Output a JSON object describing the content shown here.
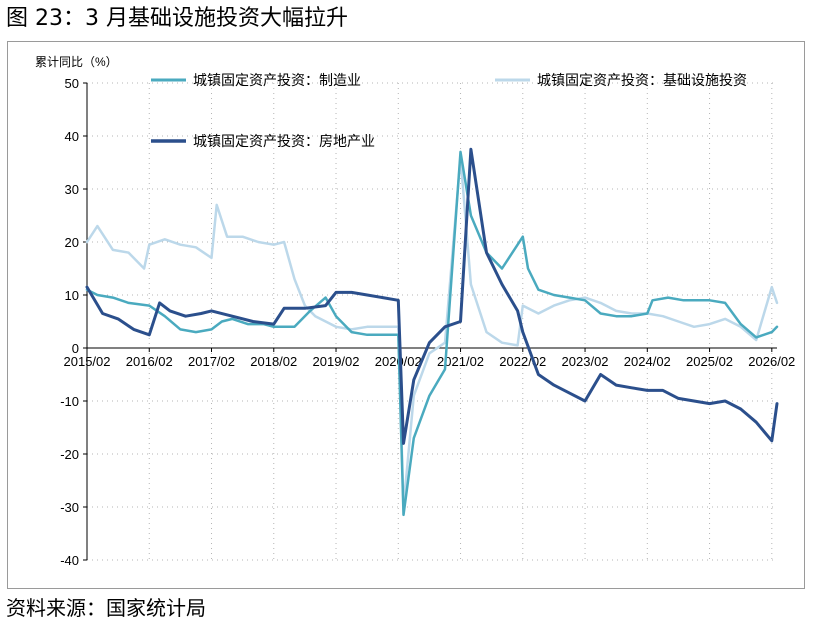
{
  "figure": {
    "title": "图 23：3 月基础设施投资大幅拉升",
    "source": "资料来源：国家统计局"
  },
  "chart_data": {
    "type": "line",
    "ylabel": "累计同比（%）",
    "ylim": [
      -40,
      50
    ],
    "yticks": [
      50,
      40,
      30,
      20,
      10,
      0,
      -10,
      -20,
      -30,
      -40
    ],
    "x_start": "2015/02",
    "x_end": "2026/03",
    "xticks": [
      "2015/02",
      "2016/02",
      "2017/02",
      "2018/02",
      "2019/02",
      "2020/02",
      "2021/02",
      "2022/02",
      "2023/02",
      "2024/02",
      "2025/02",
      "2026/02"
    ],
    "grid": "dotted",
    "colors": {
      "manufacturing": "#4aaabf",
      "infrastructure": "#bcd8ea",
      "real_estate": "#2b4f8c"
    },
    "series": [
      {
        "key": "manufacturing",
        "name": "城镇固定资产投资：制造业",
        "x": [
          "2015/02",
          "2015/04",
          "2015/07",
          "2015/10",
          "2016/02",
          "2016/05",
          "2016/08",
          "2016/11",
          "2017/02",
          "2017/04",
          "2017/06",
          "2017/09",
          "2017/12",
          "2018/02",
          "2018/06",
          "2018/09",
          "2018/12",
          "2019/02",
          "2019/05",
          "2019/08",
          "2019/11",
          "2020/02",
          "2020/03",
          "2020/05",
          "2020/08",
          "2020/11",
          "2021/02",
          "2021/04",
          "2021/07",
          "2021/10",
          "2022/02",
          "2022/03",
          "2022/05",
          "2022/08",
          "2022/11",
          "2023/02",
          "2023/05",
          "2023/08",
          "2023/11",
          "2024/02",
          "2024/03",
          "2024/06",
          "2024/09",
          "2024/12",
          "2025/02",
          "2025/05",
          "2025/08",
          "2025/11",
          "2026/02",
          "2026/03"
        ],
        "values": [
          11,
          10,
          9.5,
          8.5,
          8,
          6,
          3.5,
          3,
          3.5,
          5,
          5.5,
          4.5,
          4.5,
          4,
          4,
          7,
          9.5,
          6,
          3,
          2.5,
          2.5,
          2.5,
          -31.5,
          -17,
          -9,
          -4,
          37,
          25,
          18,
          15,
          21,
          15,
          11,
          10,
          9.5,
          9,
          6.5,
          6,
          6,
          6.5,
          9,
          9.5,
          9,
          9,
          9,
          8.5,
          4.5,
          2,
          3,
          4
        ]
      },
      {
        "key": "infrastructure",
        "name": "城镇固定资产投资：基础设施投资",
        "x": [
          "2015/02",
          "2015/04",
          "2015/07",
          "2015/10",
          "2016/01",
          "2016/02",
          "2016/05",
          "2016/08",
          "2016/11",
          "2017/02",
          "2017/03",
          "2017/05",
          "2017/08",
          "2017/11",
          "2018/02",
          "2018/04",
          "2018/06",
          "2018/08",
          "2018/10",
          "2019/02",
          "2019/05",
          "2019/08",
          "2019/11",
          "2020/02",
          "2020/03",
          "2020/05",
          "2020/08",
          "2020/11",
          "2021/02",
          "2021/04",
          "2021/07",
          "2021/10",
          "2022/01",
          "2022/02",
          "2022/05",
          "2022/08",
          "2022/11",
          "2023/02",
          "2023/05",
          "2023/08",
          "2023/11",
          "2024/02",
          "2024/05",
          "2024/08",
          "2024/11",
          "2025/02",
          "2025/05",
          "2025/08",
          "2025/11",
          "2026/02",
          "2026/03"
        ],
        "values": [
          20,
          23,
          18.5,
          18,
          15,
          19.5,
          20.5,
          19.5,
          19,
          17,
          27,
          21,
          21,
          20,
          19.5,
          20,
          13,
          8,
          6,
          4,
          3.5,
          4,
          4,
          4,
          -30,
          -9,
          -1,
          1,
          36,
          12,
          3,
          1,
          0.5,
          8,
          6.5,
          8,
          9,
          9.5,
          8.5,
          7,
          6.5,
          6.5,
          6,
          5,
          4,
          4.5,
          5.5,
          4,
          1.5,
          11.5,
          8.5
        ]
      },
      {
        "key": "real_estate",
        "name": "城镇固定资产投资：房地产业",
        "x": [
          "2015/02",
          "2015/05",
          "2015/08",
          "2015/11",
          "2016/02",
          "2016/04",
          "2016/06",
          "2016/09",
          "2016/12",
          "2017/02",
          "2017/06",
          "2017/10",
          "2018/02",
          "2018/04",
          "2018/08",
          "2018/12",
          "2019/02",
          "2019/05",
          "2019/08",
          "2019/11",
          "2020/02",
          "2020/03",
          "2020/05",
          "2020/08",
          "2020/11",
          "2021/02",
          "2021/04",
          "2021/07",
          "2021/10",
          "2022/01",
          "2022/02",
          "2022/05",
          "2022/08",
          "2022/11",
          "2023/02",
          "2023/05",
          "2023/08",
          "2023/11",
          "2024/02",
          "2024/05",
          "2024/08",
          "2024/11",
          "2025/02",
          "2025/05",
          "2025/08",
          "2025/11",
          "2026/02",
          "2026/03"
        ],
        "values": [
          11.5,
          6.5,
          5.5,
          3.5,
          2.5,
          8.5,
          7,
          6,
          6.5,
          7,
          6,
          5,
          4.5,
          7.5,
          7.5,
          8,
          10.5,
          10.5,
          10,
          9.5,
          9,
          -18,
          -6,
          1,
          4,
          5,
          37.5,
          18,
          12,
          7,
          3,
          -5,
          -7,
          -8.5,
          -10,
          -5,
          -7,
          -7.5,
          -8,
          -8,
          -9.5,
          -10,
          -10.5,
          -10,
          -11.5,
          -14,
          -17.5,
          -10.5
        ]
      }
    ]
  }
}
